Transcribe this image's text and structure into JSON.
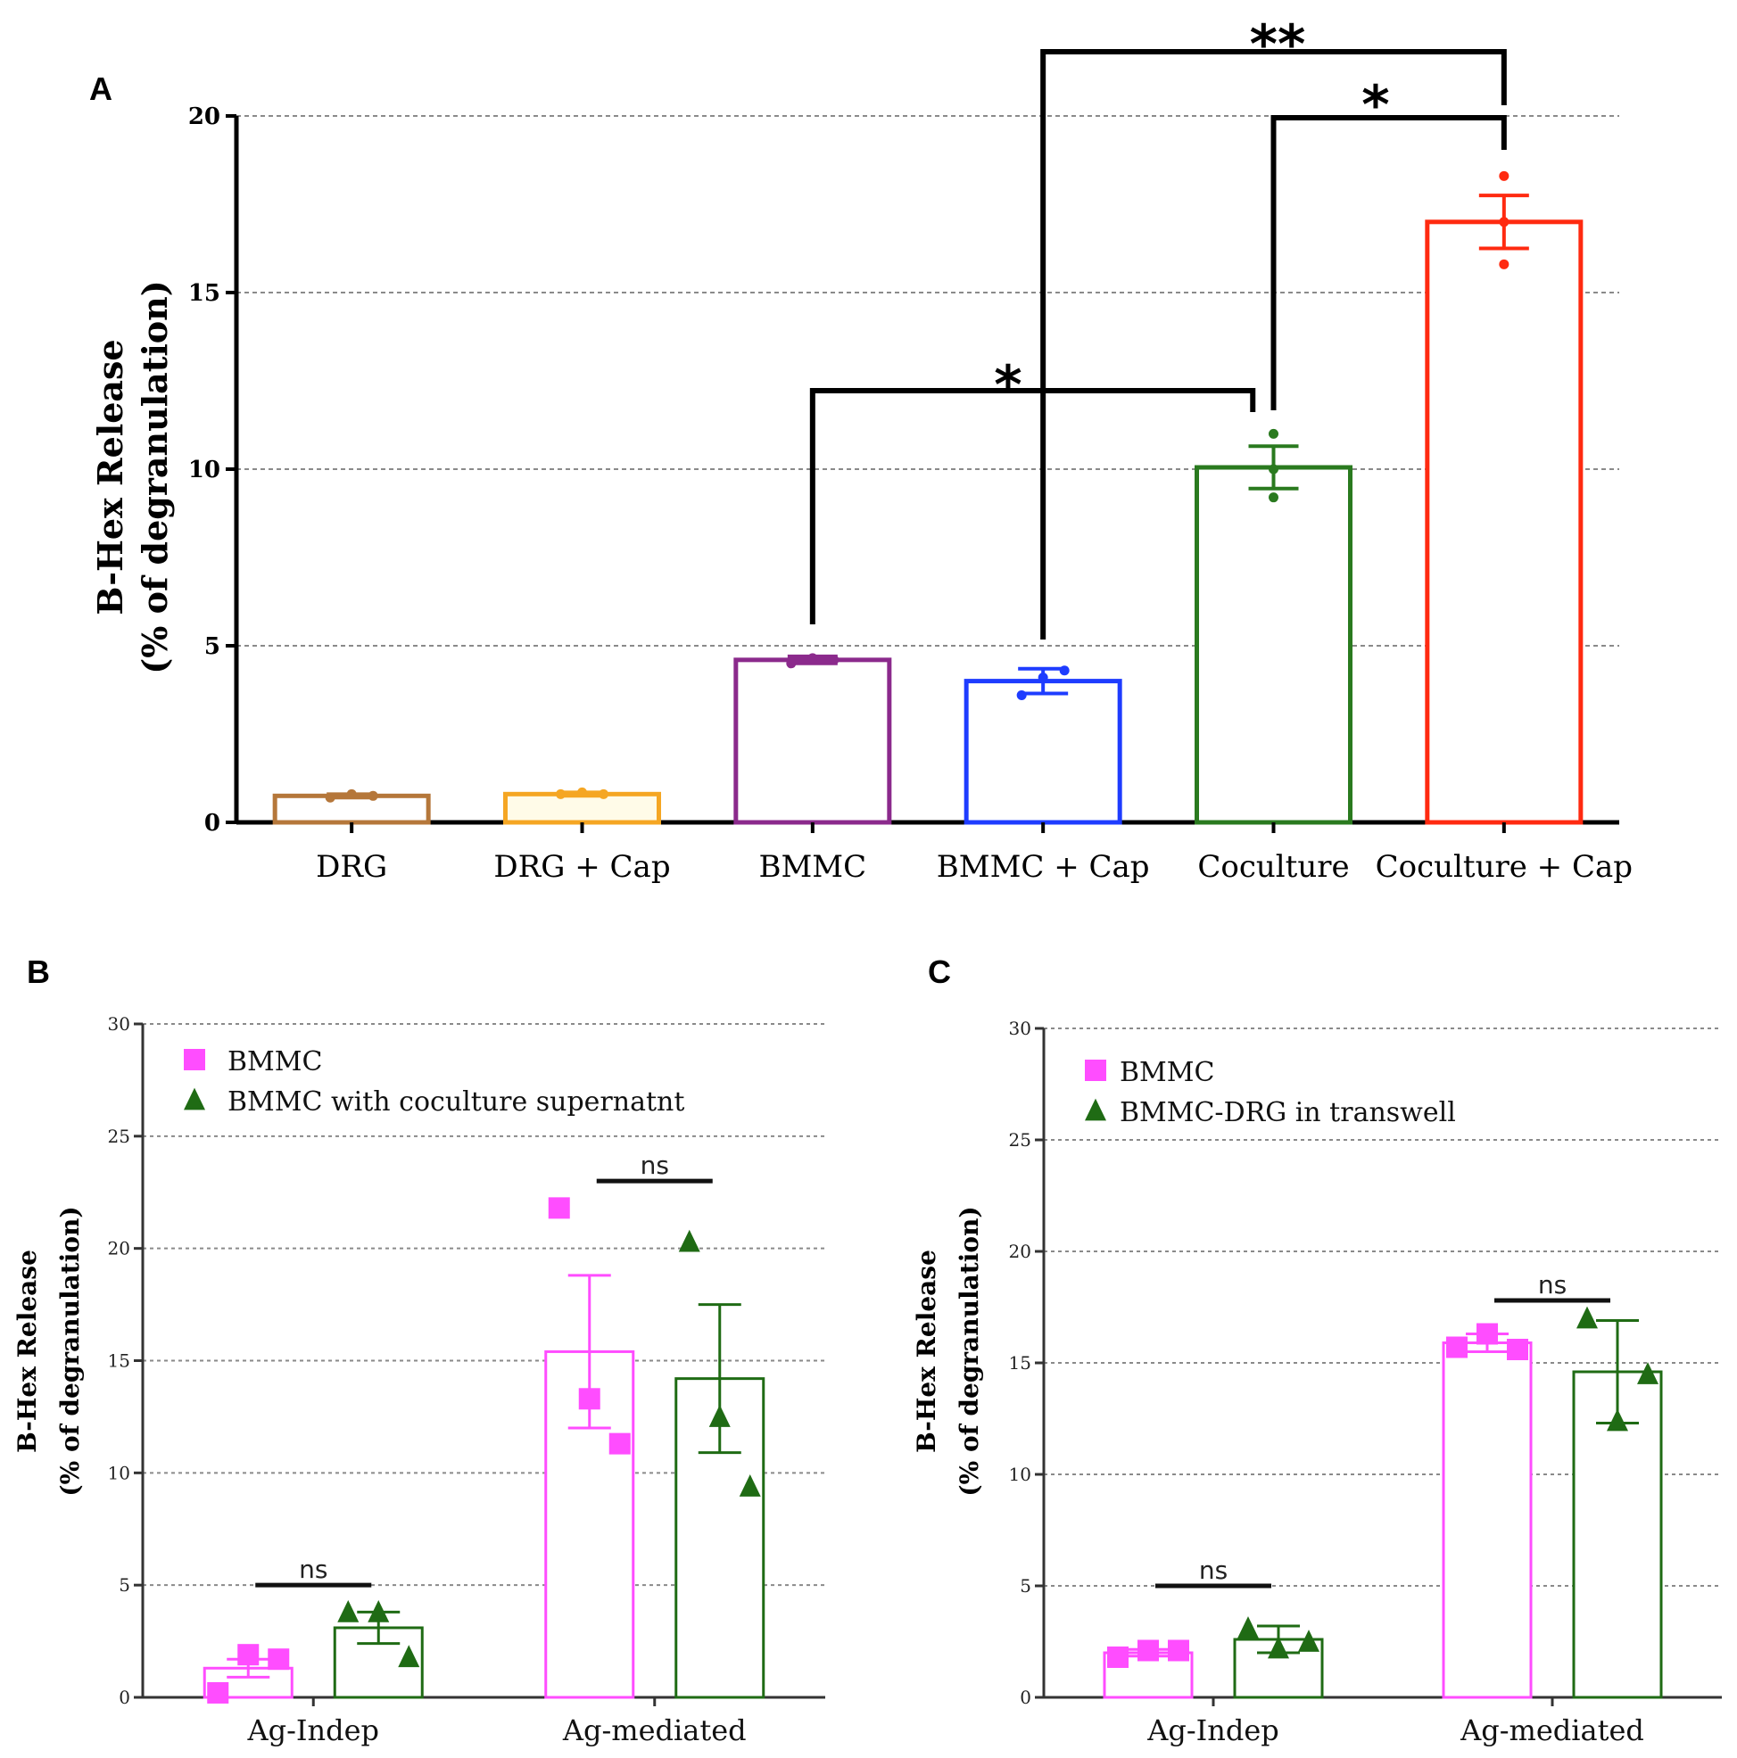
{
  "chart_data": [
    {
      "panel": "A",
      "type": "bar",
      "ylabel": "B-Hex Release",
      "ylabel2": "(% of degranulation)",
      "ylim": [
        0,
        20
      ],
      "yticks": [
        0,
        5,
        10,
        15,
        20
      ],
      "grid": true,
      "categories": [
        "DRG",
        "DRG + Cap",
        "BMMC",
        "BMMC + Cap",
        "Coculture",
        "Coculture + Cap"
      ],
      "values": [
        0.75,
        0.8,
        4.6,
        4.0,
        10.05,
        17.0
      ],
      "errors": [
        0.05,
        0.05,
        0.1,
        0.35,
        0.6,
        0.75
      ],
      "points": [
        [
          0.7,
          0.8,
          0.75
        ],
        [
          0.8,
          0.85,
          0.8
        ],
        [
          4.5,
          4.65,
          4.6
        ],
        [
          3.6,
          4.1,
          4.3
        ],
        [
          9.2,
          10.0,
          11.0
        ],
        [
          15.8,
          17.0,
          18.3
        ]
      ],
      "colors": [
        "#b5773a",
        "#f5a623",
        "#8b2a8c",
        "#1e3cff",
        "#2a7a1f",
        "#ff2a10"
      ],
      "fills": [
        "#ffffff",
        "#fffbe8",
        "#ffffff",
        "#ffffff",
        "#ffffff",
        "#ffffff"
      ],
      "annotations": [
        {
          "from": "BMMC",
          "to": "Coculture",
          "label": "*"
        },
        {
          "from": "BMMC + Cap",
          "to": "Coculture + Cap",
          "label": "**"
        },
        {
          "from": "Coculture",
          "to": "Coculture + Cap",
          "label": "*"
        }
      ]
    },
    {
      "panel": "B",
      "type": "bar",
      "ylabel": "B-Hex Release",
      "ylabel2": "(% of degranulation)",
      "ylim": [
        0,
        30
      ],
      "yticks": [
        0,
        5,
        10,
        15,
        20,
        25,
        30
      ],
      "grid": true,
      "categories": [
        "Ag-Indep",
        "Ag-mediated"
      ],
      "legend": [
        {
          "name": "BMMC",
          "marker": "square",
          "color": "#ff4dff"
        },
        {
          "name": "BMMC with coculture supernatnt",
          "marker": "triangle",
          "color": "#1f6b14"
        }
      ],
      "series": [
        {
          "name": "BMMC",
          "values": [
            1.3,
            15.4
          ],
          "errors": [
            0.4,
            3.4
          ],
          "points": [
            [
              0.2,
              1.9,
              1.7
            ],
            [
              21.8,
              13.3,
              11.3
            ]
          ],
          "color": "#ff4dff",
          "marker": "square"
        },
        {
          "name": "BMMC with coculture supernatnt",
          "values": [
            3.1,
            14.2
          ],
          "errors": [
            0.7,
            3.3
          ],
          "points": [
            [
              3.8,
              3.8,
              1.8
            ],
            [
              20.3,
              12.5,
              9.4
            ]
          ],
          "color": "#1f6b14",
          "marker": "triangle"
        }
      ],
      "annotations": [
        {
          "category": "Ag-Indep",
          "label": "ns",
          "y": 5
        },
        {
          "category": "Ag-mediated",
          "label": "ns",
          "y": 23
        }
      ]
    },
    {
      "panel": "C",
      "type": "bar",
      "ylabel": "B-Hex Release",
      "ylabel2": "(% of degranulation)",
      "ylim": [
        0,
        30
      ],
      "yticks": [
        0,
        5,
        10,
        15,
        20,
        25,
        30
      ],
      "grid": true,
      "categories": [
        "Ag-Indep",
        "Ag-mediated"
      ],
      "legend": [
        {
          "name": "BMMC",
          "marker": "square",
          "color": "#ff4dff"
        },
        {
          "name": "BMMC-DRG in  transwell",
          "marker": "triangle",
          "color": "#1f6b14"
        }
      ],
      "series": [
        {
          "name": "BMMC",
          "values": [
            2.0,
            15.9
          ],
          "errors": [
            0.15,
            0.4
          ],
          "points": [
            [
              1.8,
              2.1,
              2.1
            ],
            [
              15.7,
              16.3,
              15.6
            ]
          ],
          "color": "#ff4dff",
          "marker": "square"
        },
        {
          "name": "BMMC-DRG in  transwell",
          "values": [
            2.6,
            14.6
          ],
          "errors": [
            0.6,
            2.3
          ],
          "points": [
            [
              3.1,
              2.2,
              2.5
            ],
            [
              17.0,
              12.4,
              14.5
            ]
          ],
          "color": "#1f6b14",
          "marker": "triangle"
        }
      ],
      "annotations": [
        {
          "category": "Ag-Indep",
          "label": "ns",
          "y": 5
        },
        {
          "category": "Ag-mediated",
          "label": "ns",
          "y": 17.8
        }
      ]
    }
  ]
}
